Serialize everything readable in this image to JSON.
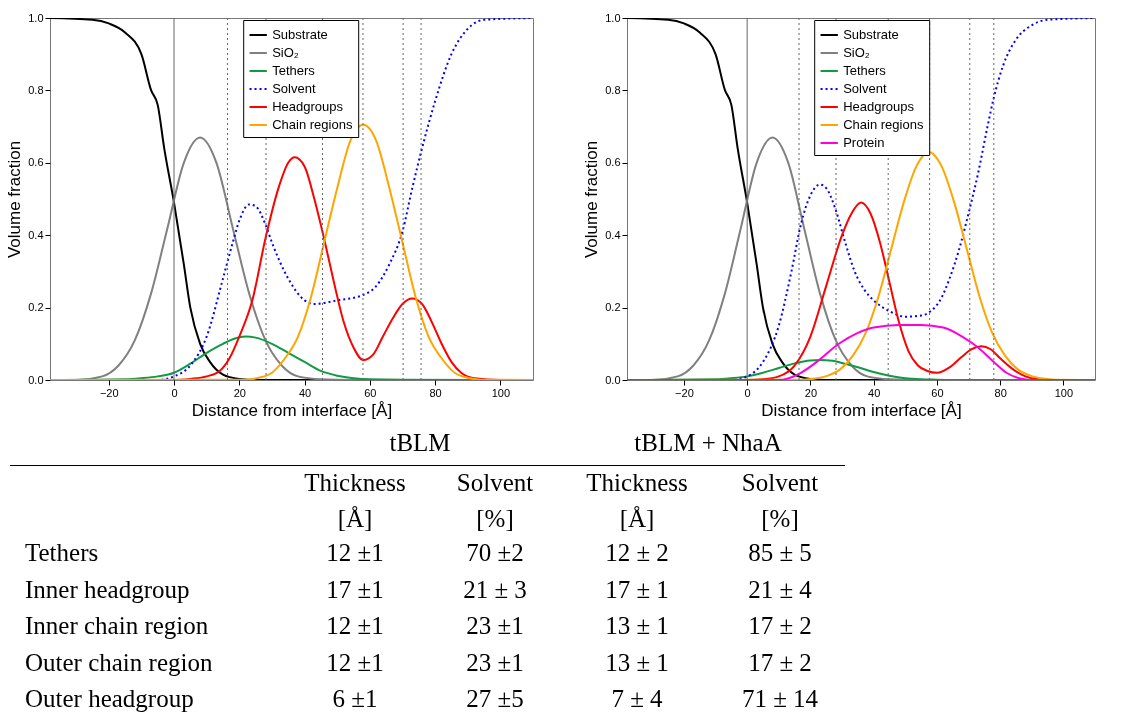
{
  "chart_data": [
    {
      "type": "line",
      "xlabel": "Distance from interface [Å]",
      "ylabel": "Volume fraction",
      "xlim": [
        -38,
        110
      ],
      "xticks": [
        -20,
        0,
        20,
        40,
        60,
        80,
        100
      ],
      "ylim": [
        0,
        1
      ],
      "yticks": [
        {
          "value": 0,
          "label": "0.0"
        },
        {
          "value": 0.2,
          "label": "0.2"
        },
        {
          "value": 0.4,
          "label": "0.4"
        },
        {
          "value": 0.6,
          "label": "0.6"
        },
        {
          "value": 0.8,
          "label": "0.8"
        },
        {
          "value": 1,
          "label": "1.0"
        }
      ],
      "grid": false,
      "legend": "top",
      "marker": "none",
      "ref_lines": [
        {
          "axis": "x",
          "value": 0,
          "color": "#666666",
          "line_style": "solid"
        },
        {
          "axis": "x",
          "value": 16.4,
          "color": "#666666",
          "line_style": "dotted"
        },
        {
          "axis": "x",
          "value": 28.2,
          "color": "#666666",
          "line_style": "dotted"
        },
        {
          "axis": "x",
          "value": 45.5,
          "color": "#666666",
          "line_style": "dotted"
        },
        {
          "axis": "x",
          "value": 57.9,
          "color": "#666666",
          "line_style": "dotted"
        },
        {
          "axis": "x",
          "value": 70.2,
          "color": "#666666",
          "line_style": "dotted"
        },
        {
          "axis": "x",
          "value": 75.7,
          "color": "#666666",
          "line_style": "dotted"
        }
      ],
      "series": [
        {
          "name": "Substrate",
          "color": "#000000",
          "line_style": "solid",
          "x": [
            -38,
            -25,
            -20,
            -15,
            -10,
            -7,
            -5,
            -3,
            0,
            3,
            5,
            8,
            11,
            15,
            20,
            25,
            110
          ],
          "values": [
            1.0,
            0.995,
            0.985,
            0.96,
            0.9,
            0.8,
            0.76,
            0.64,
            0.49,
            0.32,
            0.2,
            0.1,
            0.05,
            0.015,
            0.003,
            0,
            0
          ]
        },
        {
          "name": "SiO₂",
          "color": "#808080",
          "line_style": "solid",
          "x": [
            -38,
            -30,
            -22,
            -17,
            -12,
            -7,
            -2,
            3,
            8,
            13,
            18,
            23,
            28,
            33,
            38,
            45,
            55,
            110
          ],
          "values": [
            0,
            0,
            0.01,
            0.04,
            0.11,
            0.24,
            0.42,
            0.6,
            0.67,
            0.6,
            0.42,
            0.24,
            0.11,
            0.04,
            0.01,
            0.002,
            0,
            0
          ]
        },
        {
          "name": "Tethers",
          "color": "#109a44",
          "line_style": "solid",
          "x": [
            -38,
            -15,
            -10,
            -5,
            0,
            5,
            10,
            15,
            20,
            22,
            25,
            30,
            35,
            40,
            45,
            50,
            55,
            60,
            70,
            110
          ],
          "values": [
            0,
            0.002,
            0.005,
            0.01,
            0.02,
            0.045,
            0.075,
            0.1,
            0.118,
            0.12,
            0.117,
            0.1,
            0.075,
            0.05,
            0.025,
            0.012,
            0.005,
            0.002,
            0.001,
            0
          ]
        },
        {
          "name": "Solvent",
          "color": "#0000ff",
          "line_style": "dotted",
          "x": [
            -10,
            -5,
            0,
            5,
            10,
            15,
            18,
            20,
            23,
            25,
            28,
            30,
            35,
            40,
            43,
            50,
            58,
            62,
            66,
            70,
            73,
            76,
            80,
            85,
            90,
            95,
            110
          ],
          "values": [
            0,
            0,
            0.01,
            0.04,
            0.12,
            0.28,
            0.38,
            0.44,
            0.485,
            0.48,
            0.43,
            0.38,
            0.28,
            0.22,
            0.21,
            0.22,
            0.235,
            0.26,
            0.32,
            0.41,
            0.53,
            0.64,
            0.77,
            0.9,
            0.97,
            0.995,
            1.0
          ]
        },
        {
          "name": "Headgroups",
          "color": "#ff0000",
          "line_style": "solid",
          "x": [
            -38,
            0,
            5,
            10,
            14,
            17,
            20,
            24,
            28,
            32,
            35,
            37,
            40,
            43,
            46,
            49,
            52,
            55,
            58,
            61,
            64,
            67,
            70,
            73,
            76,
            79,
            82,
            85,
            88,
            92,
            100,
            110
          ],
          "values": [
            0,
            0,
            0.003,
            0.01,
            0.025,
            0.06,
            0.12,
            0.22,
            0.39,
            0.53,
            0.6,
            0.615,
            0.59,
            0.5,
            0.39,
            0.27,
            0.16,
            0.09,
            0.055,
            0.07,
            0.12,
            0.17,
            0.21,
            0.225,
            0.21,
            0.16,
            0.1,
            0.05,
            0.02,
            0.005,
            0,
            0
          ]
        },
        {
          "name": "Chain regions",
          "color": "#ffa500",
          "line_style": "solid",
          "x": [
            -38,
            22,
            26,
            30,
            34,
            38,
            42,
            46,
            50,
            54,
            58,
            62,
            66,
            70,
            74,
            78,
            82,
            86,
            90,
            94,
            110
          ],
          "values": [
            0,
            0.001,
            0.006,
            0.02,
            0.06,
            0.12,
            0.23,
            0.38,
            0.53,
            0.66,
            0.705,
            0.66,
            0.53,
            0.38,
            0.23,
            0.12,
            0.06,
            0.02,
            0.006,
            0.001,
            0
          ]
        }
      ]
    },
    {
      "type": "line",
      "xlabel": "Distance from interface [Å]",
      "ylabel": "Volume fraction",
      "xlim": [
        -38,
        110
      ],
      "xticks": [
        -20,
        0,
        20,
        40,
        60,
        80,
        100
      ],
      "ylim": [
        0,
        1
      ],
      "yticks": [
        {
          "value": 0,
          "label": "0.0"
        },
        {
          "value": 0.2,
          "label": "0.2"
        },
        {
          "value": 0.4,
          "label": "0.4"
        },
        {
          "value": 0.6,
          "label": "0.6"
        },
        {
          "value": 0.8,
          "label": "0.8"
        },
        {
          "value": 1,
          "label": "1.0"
        }
      ],
      "grid": false,
      "legend": "top",
      "marker": "none",
      "ref_lines": [
        {
          "axis": "x",
          "value": 0,
          "color": "#666666",
          "line_style": "solid"
        },
        {
          "axis": "x",
          "value": 16.4,
          "color": "#666666",
          "line_style": "dotted"
        },
        {
          "axis": "x",
          "value": 28.1,
          "color": "#666666",
          "line_style": "dotted"
        },
        {
          "axis": "x",
          "value": 44.6,
          "color": "#666666",
          "line_style": "dotted"
        },
        {
          "axis": "x",
          "value": 57.7,
          "color": "#666666",
          "line_style": "dotted"
        },
        {
          "axis": "x",
          "value": 70.4,
          "color": "#666666",
          "line_style": "dotted"
        },
        {
          "axis": "x",
          "value": 78,
          "color": "#666666",
          "line_style": "dotted"
        }
      ],
      "series": [
        {
          "name": "Substrate",
          "color": "#000000",
          "line_style": "solid",
          "x": [
            -38,
            -25,
            -20,
            -15,
            -10,
            -7,
            -5,
            -3,
            0,
            3,
            5,
            8,
            11,
            15,
            20,
            25,
            110
          ],
          "values": [
            1.0,
            0.995,
            0.985,
            0.96,
            0.9,
            0.8,
            0.76,
            0.64,
            0.49,
            0.32,
            0.2,
            0.1,
            0.05,
            0.015,
            0.003,
            0,
            0
          ]
        },
        {
          "name": "SiO₂",
          "color": "#808080",
          "line_style": "solid",
          "x": [
            -38,
            -30,
            -22,
            -17,
            -12,
            -7,
            -2,
            3,
            8,
            13,
            18,
            23,
            28,
            33,
            38,
            45,
            55,
            110
          ],
          "values": [
            0,
            0,
            0.01,
            0.04,
            0.11,
            0.24,
            0.42,
            0.6,
            0.67,
            0.6,
            0.42,
            0.24,
            0.11,
            0.04,
            0.01,
            0.002,
            0,
            0
          ]
        },
        {
          "name": "Tethers",
          "color": "#109a44",
          "line_style": "solid",
          "x": [
            -38,
            -10,
            -5,
            0,
            5,
            10,
            15,
            20,
            23,
            27,
            30,
            35,
            40,
            45,
            50,
            55,
            60,
            70,
            110
          ],
          "values": [
            0,
            0.002,
            0.005,
            0.01,
            0.02,
            0.033,
            0.046,
            0.054,
            0.055,
            0.053,
            0.047,
            0.035,
            0.022,
            0.012,
            0.005,
            0.002,
            0.001,
            0,
            0
          ]
        },
        {
          "name": "Solvent",
          "color": "#0000ff",
          "line_style": "dotted",
          "x": [
            -15,
            -10,
            -5,
            0,
            5,
            10,
            14,
            17,
            20,
            23,
            25,
            28,
            31,
            34,
            37,
            40,
            45,
            50,
            55,
            58,
            61,
            64,
            67,
            70,
            73,
            76,
            78,
            81,
            85,
            90,
            95,
            110
          ],
          "values": [
            0,
            0,
            0,
            0.01,
            0.05,
            0.15,
            0.3,
            0.43,
            0.51,
            0.54,
            0.53,
            0.47,
            0.38,
            0.3,
            0.25,
            0.22,
            0.19,
            0.175,
            0.178,
            0.19,
            0.22,
            0.28,
            0.36,
            0.46,
            0.57,
            0.7,
            0.78,
            0.87,
            0.94,
            0.98,
            0.995,
            1.0
          ]
        },
        {
          "name": "Headgroups",
          "color": "#ff0000",
          "line_style": "solid",
          "x": [
            -38,
            0,
            5,
            10,
            15,
            20,
            25,
            30,
            33,
            36,
            39,
            42,
            45,
            48,
            51,
            54,
            57,
            60,
            64,
            68,
            71,
            74,
            77,
            80,
            84,
            88,
            92,
            96,
            110
          ],
          "values": [
            0,
            0,
            0.002,
            0.01,
            0.04,
            0.12,
            0.26,
            0.4,
            0.46,
            0.49,
            0.46,
            0.38,
            0.27,
            0.16,
            0.08,
            0.04,
            0.025,
            0.02,
            0.035,
            0.065,
            0.085,
            0.093,
            0.085,
            0.06,
            0.03,
            0.01,
            0.002,
            0,
            0
          ]
        },
        {
          "name": "Chain regions",
          "color": "#ffa500",
          "line_style": "solid",
          "x": [
            -38,
            17.5,
            21.5,
            25.5,
            29.5,
            33.5,
            37.5,
            41.5,
            45.5,
            49.5,
            53.5,
            57.5,
            61.5,
            65.5,
            69.5,
            73.5,
            77.5,
            81.5,
            85.5,
            89.5,
            93.5,
            97.5,
            110
          ],
          "values": [
            0,
            0.001,
            0.004,
            0.012,
            0.03,
            0.068,
            0.13,
            0.23,
            0.36,
            0.49,
            0.59,
            0.63,
            0.59,
            0.49,
            0.36,
            0.23,
            0.13,
            0.068,
            0.03,
            0.012,
            0.004,
            0.001,
            0
          ]
        },
        {
          "name": "Protein",
          "color": "#ff00dd",
          "line_style": "solid",
          "x": [
            -38,
            10,
            17,
            22,
            29,
            35,
            40,
            48,
            55,
            62,
            68,
            73,
            78,
            82,
            86,
            90,
            110
          ],
          "values": [
            0,
            0,
            0.02,
            0.05,
            0.1,
            0.13,
            0.145,
            0.152,
            0.152,
            0.145,
            0.12,
            0.09,
            0.05,
            0.02,
            0.005,
            0,
            0
          ]
        }
      ]
    },
    {
      "type": "other",
      "annotations": [
        "tBLM",
        "tBLM + NhaA",
        "Thickness",
        "Solvent",
        "Thickness",
        "Solvent",
        "[Å]",
        "[%]",
        "[Å]",
        "[%]",
        "Tethers",
        "12 ±1",
        "70 ±2",
        "12 ± 2",
        "85 ± 5",
        "Inner headgroup",
        "17 ±1",
        "21 ± 3",
        "17 ± 1",
        "21 ± 4",
        "Inner chain region",
        "12 ±1",
        "23 ±1",
        "13 ± 1",
        "17 ± 2",
        "Outer chain region",
        "12 ±1",
        "23 ±1",
        "13 ± 1",
        "17 ± 2",
        "Outer headgroup",
        "6 ±1",
        "27 ±5",
        "7 ± 4",
        "71 ± 14"
      ]
    }
  ]
}
